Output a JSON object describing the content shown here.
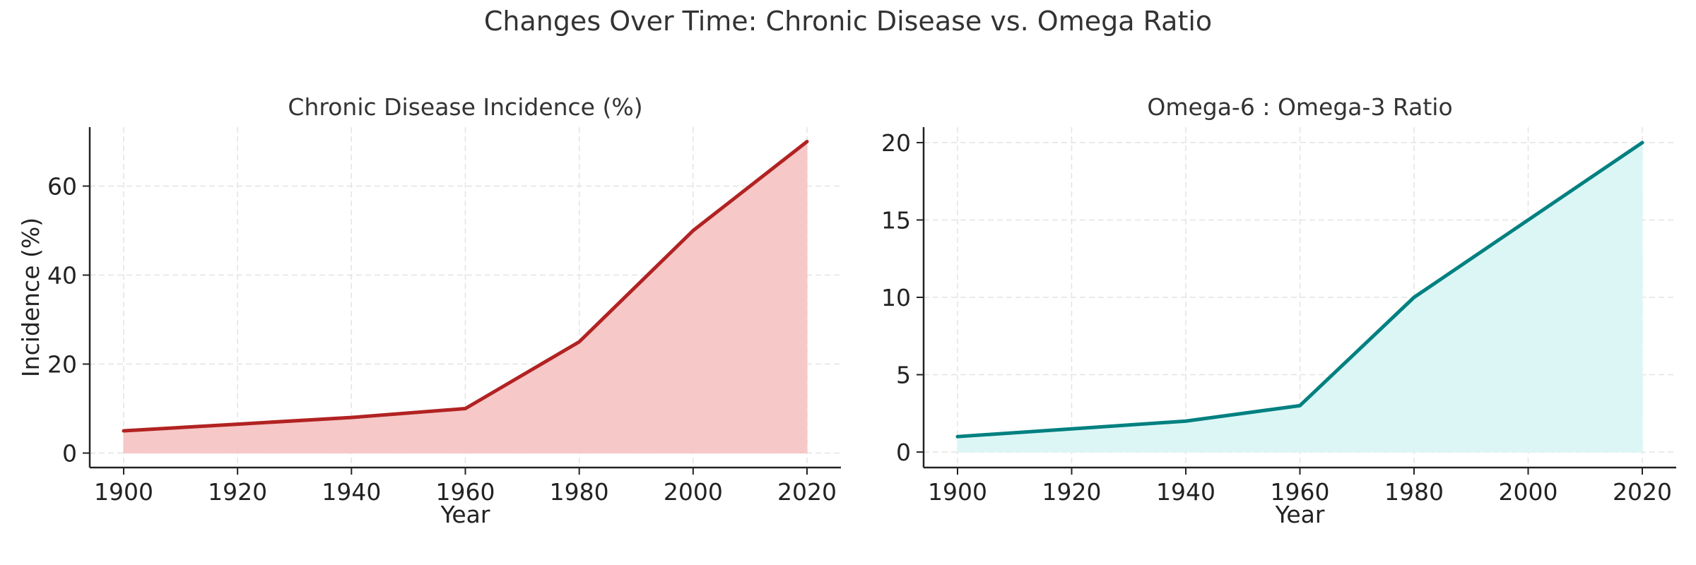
{
  "suptitle": "Changes Over Time: Chronic Disease vs. Omega Ratio",
  "chart_data": [
    {
      "type": "area",
      "title": "Chronic Disease Incidence (%)",
      "xlabel": "Year",
      "ylabel": "Incidence (%)",
      "x": [
        1900,
        1920,
        1940,
        1960,
        1980,
        2000,
        2020
      ],
      "series": [
        {
          "values": [
            5,
            6.5,
            8,
            10,
            25,
            50,
            70
          ]
        }
      ],
      "xticks": [
        1900,
        1920,
        1940,
        1960,
        1980,
        2000,
        2020
      ],
      "yticks": [
        0,
        20,
        40,
        60
      ],
      "xlim": [
        1894,
        2020
      ],
      "ylim": [
        -3.25,
        73.25
      ],
      "grid": true,
      "line_color": "#b22222",
      "fill_color": "#f6c8c8"
    },
    {
      "type": "area",
      "title": "Omega-6 : Omega-3 Ratio",
      "xlabel": "Year",
      "ylabel": "",
      "x": [
        1900,
        1920,
        1940,
        1960,
        1980,
        2000,
        2020
      ],
      "series": [
        {
          "values": [
            1,
            1.5,
            2,
            3,
            10,
            15,
            20
          ]
        }
      ],
      "xticks": [
        1900,
        1920,
        1940,
        1960,
        1980,
        2000,
        2020
      ],
      "yticks": [
        0,
        5,
        10,
        15,
        20
      ],
      "xlim": [
        1894,
        2020
      ],
      "ylim": [
        -1,
        21
      ],
      "grid": true,
      "line_color": "#008080",
      "fill_color": "#dcf6f6"
    }
  ]
}
